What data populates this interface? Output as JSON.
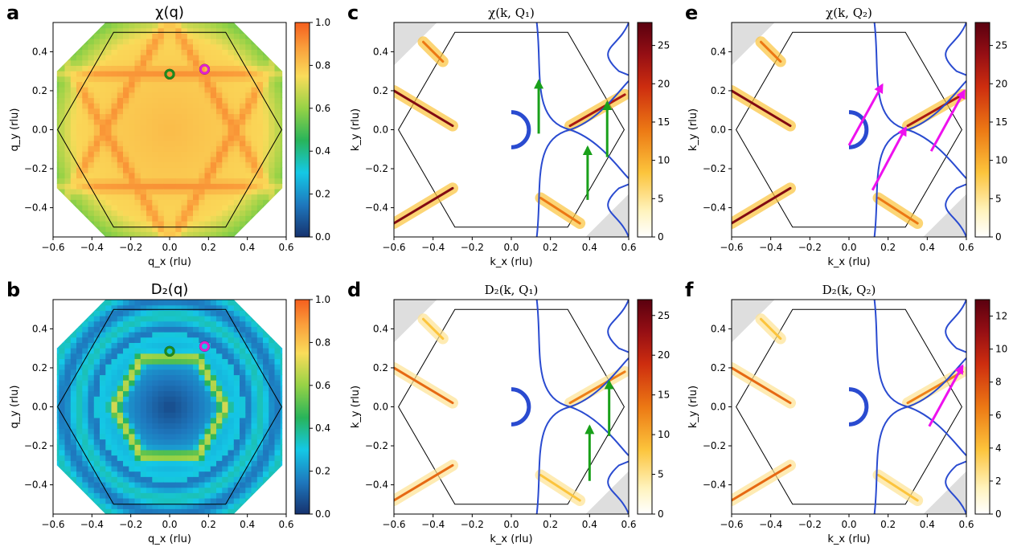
{
  "colors": {
    "fermi_surface": "#2a4bd0",
    "arrow_q1": "#19a01a",
    "arrow_q2": "#ee11ee",
    "marker_q1": "#1e8a1e",
    "marker_q2": "#e020d0",
    "bz": "#000000"
  },
  "chart_data": [
    {
      "id": "a",
      "panel_label": "a",
      "type": "heatmap",
      "title": "χ(q)",
      "xlabel": "q_x (rlu)",
      "ylabel": "q_y (rlu)",
      "xlim": [
        -0.6,
        0.6
      ],
      "ylim": [
        -0.55,
        0.55
      ],
      "xticks": [
        "−0.6",
        "−0.4",
        "−0.2",
        "0.0",
        "0.2",
        "0.4",
        "0.6"
      ],
      "yticks": [
        "−0.4",
        "−0.2",
        "0.0",
        "0.2",
        "0.4"
      ],
      "colorbar": {
        "range": [
          0,
          1
        ],
        "ticks": [
          "0.0",
          "0.2",
          "0.4",
          "0.6",
          "0.8",
          "1.0"
        ],
        "colormap": "turbo"
      },
      "markers": [
        {
          "name": "Q1",
          "x": 0.0,
          "y": 0.285
        },
        {
          "name": "Q2",
          "x": 0.18,
          "y": 0.31
        }
      ]
    },
    {
      "id": "b",
      "panel_label": "b",
      "type": "heatmap",
      "title": "D₂(q)",
      "xlabel": "q_x (rlu)",
      "ylabel": "q_y (rlu)",
      "xlim": [
        -0.6,
        0.6
      ],
      "ylim": [
        -0.55,
        0.55
      ],
      "xticks": [
        "−0.6",
        "−0.4",
        "−0.2",
        "0.0",
        "0.2",
        "0.4",
        "0.6"
      ],
      "yticks": [
        "−0.4",
        "−0.2",
        "0.0",
        "0.2",
        "0.4"
      ],
      "colorbar": {
        "range": [
          0,
          1
        ],
        "ticks": [
          "0.0",
          "0.2",
          "0.4",
          "0.6",
          "0.8",
          "1.0"
        ],
        "colormap": "turbo"
      },
      "markers": [
        {
          "name": "Q1",
          "x": 0.0,
          "y": 0.285
        },
        {
          "name": "Q2",
          "x": 0.18,
          "y": 0.31
        }
      ]
    },
    {
      "id": "c",
      "panel_label": "c",
      "type": "heatmap",
      "title": "χ(k, Q₁)",
      "xlabel": "k_x (rlu)",
      "ylabel": "k_y (rlu)",
      "xlim": [
        -0.6,
        0.6
      ],
      "ylim": [
        -0.55,
        0.55
      ],
      "xticks": [
        "−0.6",
        "−0.4",
        "−0.2",
        "0.0",
        "0.2",
        "0.4",
        "0.6"
      ],
      "yticks": [
        "−0.4",
        "−0.2",
        "0.0",
        "0.2",
        "0.4"
      ],
      "colorbar": {
        "range": [
          0,
          28
        ],
        "ticks": [
          "0",
          "5",
          "10",
          "15",
          "20",
          "25"
        ],
        "colormap": "hot_r"
      },
      "arrows": [
        {
          "from": [
            0.14,
            -0.02
          ],
          "to": [
            0.14,
            0.25
          ]
        },
        {
          "from": [
            0.39,
            -0.36
          ],
          "to": [
            0.39,
            -0.09
          ]
        },
        {
          "from": [
            0.49,
            -0.14
          ],
          "to": [
            0.49,
            0.14
          ]
        }
      ]
    },
    {
      "id": "d",
      "panel_label": "d",
      "type": "heatmap",
      "title": "D₂(k, Q₁)",
      "xlabel": "k_x (rlu)",
      "ylabel": "k_y (rlu)",
      "xlim": [
        -0.6,
        0.6
      ],
      "ylim": [
        -0.55,
        0.55
      ],
      "xticks": [
        "−0.6",
        "−0.4",
        "−0.2",
        "0.0",
        "0.2",
        "0.4",
        "0.6"
      ],
      "yticks": [
        "−0.4",
        "−0.2",
        "0.0",
        "0.2",
        "0.4"
      ],
      "colorbar": {
        "range": [
          0,
          27
        ],
        "ticks": [
          "0",
          "5",
          "10",
          "15",
          "20",
          "25"
        ],
        "colormap": "hot_r"
      },
      "arrows": [
        {
          "from": [
            0.4,
            -0.38
          ],
          "to": [
            0.4,
            -0.1
          ]
        },
        {
          "from": [
            0.5,
            -0.15
          ],
          "to": [
            0.5,
            0.13
          ]
        }
      ]
    },
    {
      "id": "e",
      "panel_label": "e",
      "type": "heatmap",
      "title": "χ(k, Q₂)",
      "xlabel": "k_x (rlu)",
      "ylabel": "k_y (rlu)",
      "xlim": [
        -0.6,
        0.6
      ],
      "ylim": [
        -0.55,
        0.55
      ],
      "xticks": [
        "−0.6",
        "−0.4",
        "−0.2",
        "0.0",
        "0.2",
        "0.4",
        "0.6"
      ],
      "yticks": [
        "−0.4",
        "−0.2",
        "0.0",
        "0.2",
        "0.4"
      ],
      "colorbar": {
        "range": [
          0,
          28
        ],
        "ticks": [
          "0",
          "5",
          "10",
          "15",
          "20",
          "25"
        ],
        "colormap": "hot_r"
      },
      "arrows": [
        {
          "from": [
            0.0,
            -0.08
          ],
          "to": [
            0.17,
            0.23
          ]
        },
        {
          "from": [
            0.12,
            -0.31
          ],
          "to": [
            0.29,
            0.01
          ]
        },
        {
          "from": [
            0.42,
            -0.11
          ],
          "to": [
            0.59,
            0.2
          ]
        }
      ]
    },
    {
      "id": "f",
      "panel_label": "f",
      "type": "heatmap",
      "title": "D₂(k, Q₂)",
      "xlabel": "k_x (rlu)",
      "ylabel": "k_y (rlu)",
      "xlim": [
        -0.6,
        0.6
      ],
      "ylim": [
        -0.55,
        0.55
      ],
      "xticks": [
        "−0.6",
        "−0.4",
        "−0.2",
        "0.0",
        "0.2",
        "0.4",
        "0.6"
      ],
      "yticks": [
        "−0.4",
        "−0.2",
        "0.0",
        "0.2",
        "0.4"
      ],
      "colorbar": {
        "range": [
          0,
          13
        ],
        "ticks": [
          "0",
          "2",
          "4",
          "6",
          "8",
          "10",
          "12"
        ],
        "colormap": "hot_r"
      },
      "arrows": [
        {
          "from": [
            0.41,
            -0.1
          ],
          "to": [
            0.58,
            0.21
          ]
        }
      ]
    }
  ]
}
